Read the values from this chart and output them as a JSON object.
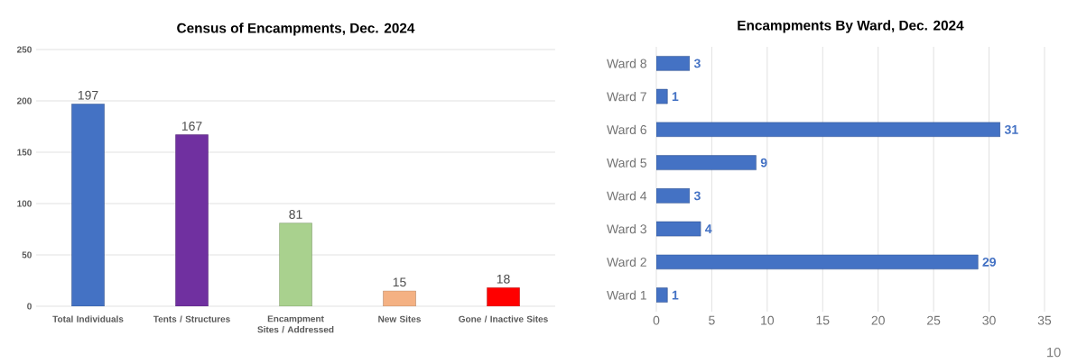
{
  "chart_data": [
    {
      "type": "bar",
      "title": "Census of Encampments, Dec. 2024",
      "categories": [
        "Total Individuals",
        "Tents / Structures",
        "Encampment Sites / Addressed",
        "New Sites",
        "Gone / Inactive Sites"
      ],
      "values": [
        197,
        167,
        81,
        15,
        18
      ],
      "colors": [
        "#4472c4",
        "#7030a0",
        "#a9d18e",
        "#f4b183",
        "#ff0000"
      ],
      "ylim": [
        0,
        250
      ],
      "yticks": [
        0,
        50,
        100,
        150,
        200,
        250
      ],
      "grid": "y",
      "data_labels": true
    },
    {
      "type": "bar",
      "orientation": "horizontal",
      "title": "Encampments By Ward, Dec. 2024",
      "categories": [
        "Ward 8",
        "Ward 7",
        "Ward 6",
        "Ward 5",
        "Ward 4",
        "Ward 3",
        "Ward 2",
        "Ward 1"
      ],
      "values": [
        3,
        1,
        31,
        9,
        3,
        4,
        29,
        1
      ],
      "color": "#4472c4",
      "xlim": [
        0,
        35
      ],
      "xticks": [
        0,
        5,
        10,
        15,
        20,
        25,
        30,
        35
      ],
      "grid": "x",
      "data_labels": true,
      "annotations": [
        "10"
      ]
    }
  ]
}
